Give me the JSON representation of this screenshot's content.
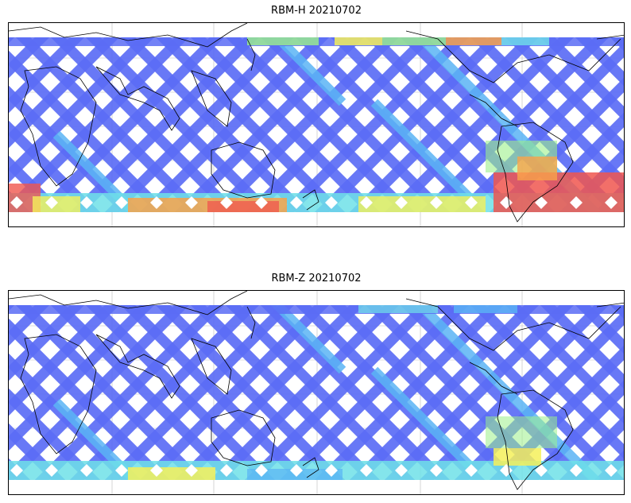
{
  "panels": [
    {
      "title": "RBM-H 20210702",
      "colors": {
        "track_main": "#5b6cf5",
        "track_mid": "#5ab4f5",
        "edge_cyan": "#6fe0e8",
        "edge_yellow": "#f4f05a",
        "edge_red": "#f0564f",
        "edge_orange": "#f7a24a",
        "edge_green": "#9cf08a"
      }
    },
    {
      "title": "RBM-Z 20210702",
      "colors": {
        "track_main": "#5b6cf5",
        "track_mid": "#5ab4f5",
        "edge_cyan": "#6fe0e8",
        "edge_yellow": "#f4f05a",
        "edge_red": "#f0564f",
        "edge_orange": "#f7a24a",
        "edge_green": "#9cf08a"
      }
    }
  ],
  "map": {
    "coastline_color": "#000000",
    "gridline_color": "#bbbbbb"
  }
}
